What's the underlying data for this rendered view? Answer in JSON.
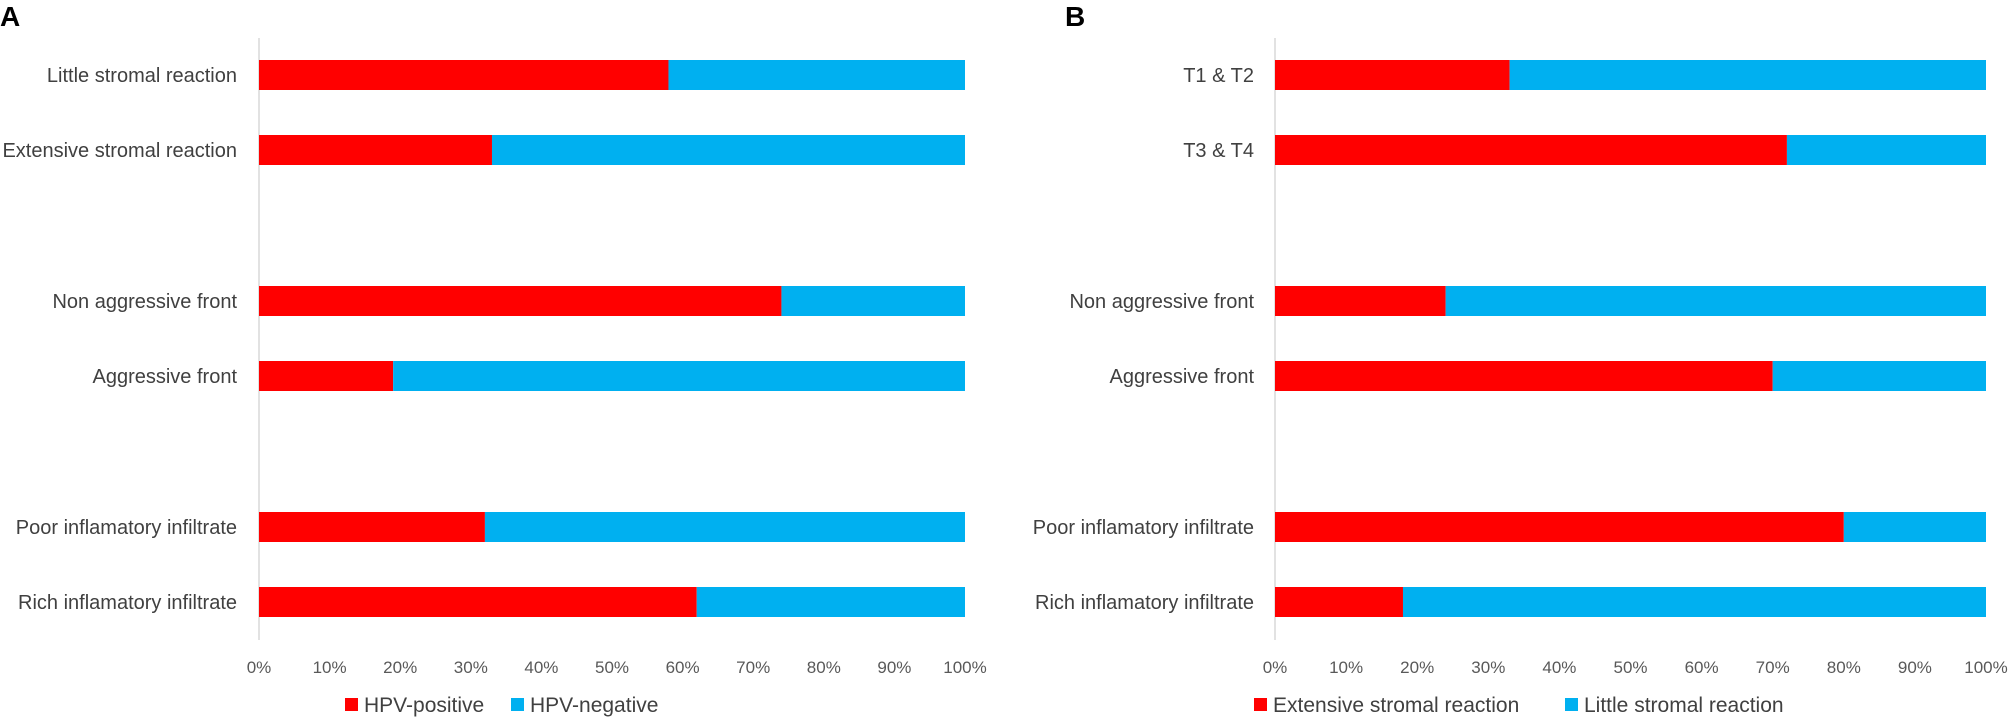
{
  "colors": {
    "positive": "#FF0000",
    "negative": "#00B0F0",
    "axis": "#D9D9D9"
  },
  "chart_data": [
    {
      "type": "bar",
      "orientation": "horizontal",
      "stacked": "percent",
      "panel_label": "A",
      "categories": [
        "Little stromal reaction",
        "Extensive stromal reaction",
        "Non aggressive front",
        "Aggressive front",
        "Poor inflamatory infiltrate",
        "Rich inflamatory infiltrate"
      ],
      "series": [
        {
          "name": "HPV-positive",
          "values": [
            58,
            33,
            74,
            19,
            32,
            62
          ]
        },
        {
          "name": "HPV-negative",
          "values": [
            42,
            67,
            26,
            81,
            68,
            38
          ]
        }
      ],
      "xlim": [
        0,
        100
      ],
      "xticks": [
        "0%",
        "10%",
        "20%",
        "30%",
        "40%",
        "50%",
        "60%",
        "70%",
        "80%",
        "90%",
        "100%"
      ],
      "legend_position": "bottom"
    },
    {
      "type": "bar",
      "orientation": "horizontal",
      "stacked": "percent",
      "panel_label": "B",
      "categories": [
        "T1 & T2",
        "T3 & T4",
        "Non aggressive front",
        "Aggressive front",
        "Poor inflamatory infiltrate",
        "Rich inflamatory infiltrate"
      ],
      "series": [
        {
          "name": "Extensive stromal reaction",
          "values": [
            33,
            72,
            24,
            70,
            80,
            18
          ]
        },
        {
          "name": "Little stromal reaction",
          "values": [
            67,
            28,
            76,
            30,
            20,
            82
          ]
        }
      ],
      "xlim": [
        0,
        100
      ],
      "xticks": [
        "0%",
        "10%",
        "20%",
        "30%",
        "40%",
        "50%",
        "60%",
        "70%",
        "80%",
        "90%",
        "100%"
      ],
      "legend_position": "bottom"
    }
  ]
}
